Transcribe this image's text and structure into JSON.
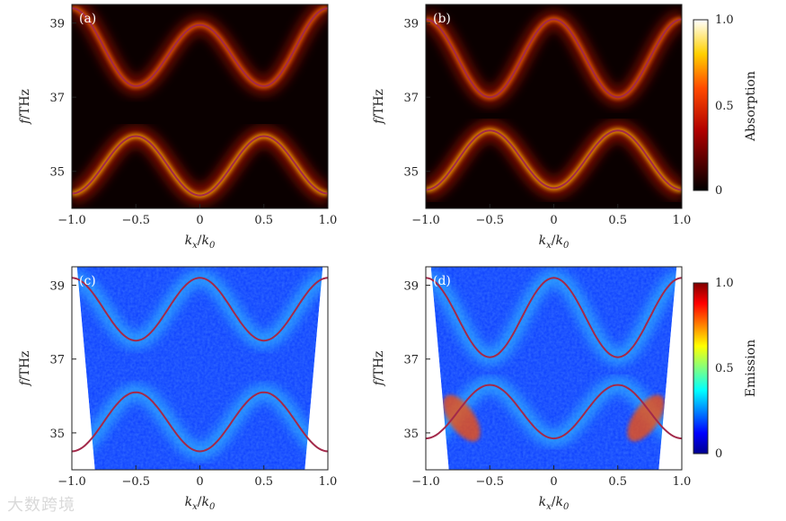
{
  "figure": {
    "watermark": "大数跨境"
  },
  "colors": {
    "curve": "#a3294a",
    "hot_low": "#000000",
    "hot_high": "#ffffff",
    "jet_low": "#00008f",
    "jet_high": "#800000"
  },
  "chart_data": [
    {
      "type": "heatmap",
      "panel_label": "(a)",
      "colormap": "hot",
      "xlabel": "k_x/k_0",
      "ylabel": "f/THz",
      "xlim": [
        -1.0,
        1.0
      ],
      "ylim": [
        34.0,
        39.5
      ],
      "x_ticks": [
        "−1.0",
        "−0.5",
        "0",
        "0.5",
        "1.0"
      ],
      "y_ticks": [
        "35",
        "37",
        "39"
      ],
      "upper_band": {
        "k": [
          -1.0,
          -0.5,
          0.0,
          0.5,
          1.0
        ],
        "f": [
          39.4,
          37.3,
          38.95,
          37.3,
          39.4
        ]
      },
      "lower_band": {
        "k": [
          -1.0,
          -0.5,
          0.0,
          0.5,
          1.0
        ],
        "f": [
          34.4,
          35.95,
          34.35,
          35.95,
          34.4
        ]
      }
    },
    {
      "type": "heatmap",
      "panel_label": "(b)",
      "colormap": "hot",
      "xlabel": "k_x/k_0",
      "ylabel": "f/THz",
      "xlim": [
        -1.0,
        1.0
      ],
      "ylim": [
        34.0,
        39.5
      ],
      "x_ticks": [
        "−1.0",
        "−0.5",
        "0",
        "0.5",
        "1.0"
      ],
      "y_ticks": [
        "35",
        "37",
        "39"
      ],
      "colorbar": {
        "label": "Absorption",
        "ticks": [
          "0",
          "0.5",
          "1.0"
        ],
        "range": [
          0,
          1
        ]
      },
      "upper_band": {
        "k": [
          -1.0,
          -0.5,
          0.0,
          0.5,
          1.0
        ],
        "f": [
          39.1,
          37.0,
          39.1,
          37.0,
          39.1
        ]
      },
      "lower_band": {
        "k": [
          -1.0,
          -0.5,
          0.0,
          0.5,
          1.0
        ],
        "f": [
          34.5,
          36.1,
          34.55,
          36.1,
          34.5
        ]
      }
    },
    {
      "type": "heatmap",
      "panel_label": "(c)",
      "colormap": "jet",
      "xlabel": "k_x/k_0",
      "ylabel": "f/THz",
      "xlim": [
        -1.0,
        1.0
      ],
      "ylim": [
        34.0,
        39.5
      ],
      "x_ticks": [
        "−1.0",
        "−0.5",
        "0",
        "0.5",
        "1.0"
      ],
      "y_ticks": [
        "35",
        "37",
        "39"
      ],
      "upper_band": {
        "k": [
          -1.0,
          -0.5,
          0.0,
          0.5,
          1.0
        ],
        "f": [
          39.2,
          37.5,
          39.2,
          37.5,
          39.2
        ]
      },
      "lower_band": {
        "k": [
          -1.0,
          -0.5,
          0.0,
          0.5,
          1.0
        ],
        "f": [
          34.5,
          36.1,
          34.5,
          36.1,
          34.5
        ]
      }
    },
    {
      "type": "heatmap",
      "panel_label": "(d)",
      "colormap": "jet",
      "xlabel": "k_x/k_0",
      "ylabel": "f/THz",
      "xlim": [
        -1.0,
        1.0
      ],
      "ylim": [
        34.0,
        39.5
      ],
      "x_ticks": [
        "−1.0",
        "−0.5",
        "0",
        "0.5",
        "1.0"
      ],
      "y_ticks": [
        "35",
        "37",
        "39"
      ],
      "colorbar": {
        "label": "Emission",
        "ticks": [
          "0",
          "0.5",
          "1.0"
        ],
        "range": [
          0,
          1
        ]
      },
      "upper_band": {
        "k": [
          -1.0,
          -0.5,
          0.0,
          0.5,
          1.0
        ],
        "f": [
          39.2,
          37.05,
          39.2,
          37.05,
          39.2
        ]
      },
      "lower_band": {
        "k": [
          -1.0,
          -0.5,
          0.0,
          0.5,
          1.0
        ],
        "f": [
          34.85,
          36.3,
          34.85,
          36.3,
          34.85
        ]
      }
    }
  ]
}
